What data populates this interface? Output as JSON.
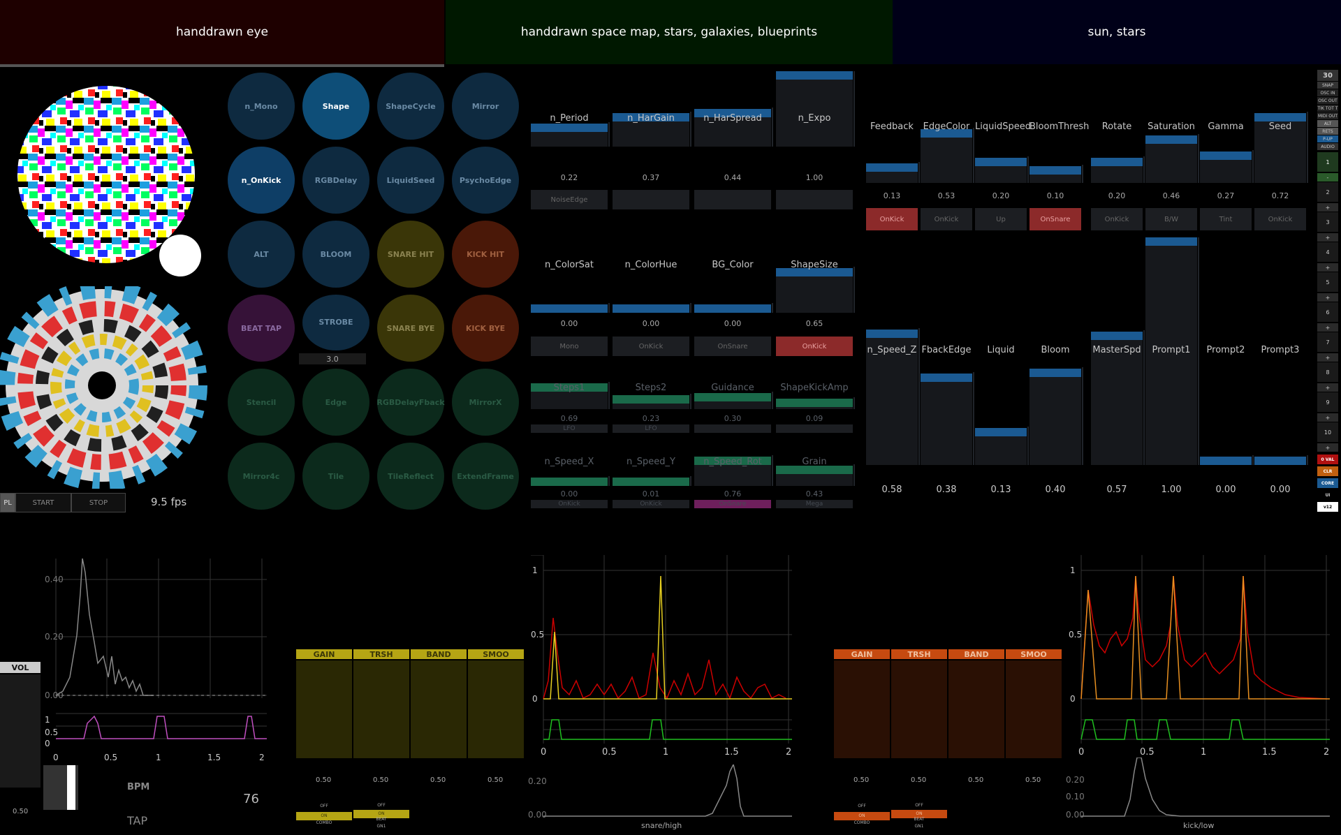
{
  "prompts": [
    "handdrawn eye",
    "handdrawn space map, stars, galaxies, blueprints",
    "sun, stars"
  ],
  "fps": "9.5 fps",
  "transport": {
    "pl": "PL",
    "start": "START",
    "stop": "STOP"
  },
  "toggles": [
    "n_Mono",
    "Shape",
    "ShapeCycle",
    "Mirror",
    "n_OnKick",
    "RGBDelay",
    "LiquidSeed",
    "PsychoEdge",
    "ALT",
    "BLOOM",
    "SNARE HIT",
    "KICK HIT",
    "BEAT TAP",
    "STROBE",
    "SNARE BYE",
    "KICK BYE",
    "Stencil",
    "Edge",
    "RGBDelayFback",
    "MirrorX",
    "Mirror4c",
    "Tile",
    "TileReflect",
    "ExtendFrame"
  ],
  "strobe_value": "3.0",
  "params_left": {
    "row1": {
      "labels": [
        "n_Period",
        "n_HarGain",
        "n_HarSpread",
        "n_Expo"
      ],
      "values": [
        "0.22",
        "0.37",
        "0.44",
        "1.00"
      ],
      "levels": [
        0.22,
        0.37,
        0.44,
        1.0
      ],
      "modes": [
        "NoiseEdge",
        "",
        "",
        ""
      ]
    },
    "row2": {
      "labels": [
        "n_ColorSat",
        "n_ColorHue",
        "BG_Color",
        "ShapeSize"
      ],
      "values": [
        "0.00",
        "0.00",
        "0.00",
        "0.65"
      ],
      "levels": [
        0,
        0,
        0,
        0.65
      ],
      "modes": [
        "Mono",
        "OnKick",
        "OnSnare",
        "OnKick"
      ]
    },
    "row3": {
      "labels": [
        "Steps1",
        "Steps2",
        "Guidance",
        "ShapeKickAmp"
      ],
      "values": [
        "0.69",
        "0.23",
        "0.30",
        "0.09"
      ],
      "levels": [
        0.69,
        0.23,
        0.3,
        0.09
      ],
      "modes": [
        "LFO",
        "LFO",
        "",
        ""
      ]
    },
    "row4": {
      "labels": [
        "n_Speed_X",
        "n_Speed_Y",
        "n_Speed_Rot",
        "Grain"
      ],
      "values": [
        "0.00",
        "0.01",
        "0.76",
        "0.43"
      ],
      "levels": [
        0,
        0.01,
        0.76,
        0.43
      ],
      "modes": [
        "OnKick",
        "OnKick",
        "OnSnare",
        "Mega"
      ]
    }
  },
  "params_right": {
    "row1": {
      "labels": [
        "Feedback",
        "EdgeColor",
        "LiquidSpeed",
        "BloomThresh",
        "Rotate",
        "Saturation",
        "Gamma",
        "Seed"
      ],
      "values": [
        "0.13",
        "0.53",
        "0.20",
        "0.10",
        "0.20",
        "0.46",
        "0.27",
        "0.72"
      ],
      "levels": [
        0.13,
        0.53,
        0.2,
        0.1,
        0.2,
        0.46,
        0.27,
        0.72
      ],
      "modes": [
        "OnKick",
        "OnKick",
        "Up",
        "OnSnare",
        "OnKick",
        "B/W",
        "Tint",
        "OnKick"
      ]
    },
    "row2": {
      "labels": [
        "n_Speed_Z",
        "FbackEdge",
        "Liquid",
        "Bloom",
        "MasterSpd",
        "Prompt1",
        "Prompt2",
        "Prompt3"
      ],
      "values": [
        "0.58",
        "0.38",
        "0.13",
        "0.40",
        "0.57",
        "1.00",
        "0.00",
        "0.00"
      ],
      "levels": [
        0.58,
        0.38,
        0.13,
        0.4,
        0.57,
        1.0,
        0.0,
        0.0
      ]
    }
  },
  "sidebar": {
    "top": "30",
    "items": [
      "SNAP",
      "OSC IN",
      "OSC OUT",
      "TIK TOT T",
      "MIDI OUT",
      "ALT",
      "RETS",
      "P-UP",
      "AUDIO"
    ],
    "slots": [
      "1",
      "-",
      "2",
      "+",
      "3",
      "+",
      "4",
      "+",
      "5",
      "+",
      "6",
      "+",
      "7",
      "+",
      "8",
      "+",
      "9",
      "+",
      "10",
      "+"
    ],
    "bottom": [
      "0 VAL",
      "CLR",
      "CORE",
      "UI",
      "v12"
    ]
  },
  "audio": {
    "vol_label": "VOL",
    "vol_value": "0.50",
    "bpm_label": "BPM",
    "bpm_value": "76",
    "tap_label": "TAP",
    "vol_ticks": [
      "0.40",
      "0.20",
      "0.00"
    ],
    "beat_ticks_y": [
      "1",
      "0.5",
      "0"
    ],
    "x_ticks": [
      "0",
      "0.5",
      "1",
      "1.5",
      "2"
    ],
    "snare_headers": [
      "GAIN",
      "TRSH",
      "BAND",
      "SMOO"
    ],
    "snare_values": [
      "0.50",
      "0.50",
      "0.50",
      "0.50"
    ],
    "snare_mode_a": [
      "OFF",
      "ON",
      "COMBO"
    ],
    "snare_mode_b": [
      "OFF",
      "ON",
      "BEAT",
      "GN1"
    ],
    "kick_headers": [
      "GAIN",
      "TRSH",
      "BAND",
      "SMOO"
    ],
    "kick_values": [
      "0.50",
      "0.50",
      "0.50",
      "0.50"
    ],
    "kick_mode_a": [
      "OFF",
      "ON",
      "COMBO"
    ],
    "kick_mode_b": [
      "OFF",
      "ON",
      "BEAT",
      "GN1"
    ],
    "env_ticks_y": [
      "1",
      "0.5",
      "0"
    ],
    "spec_ticks_snare": [
      "0.20",
      "0.00"
    ],
    "spec_ticks_kick": [
      "0.20",
      "0.10",
      "0.00"
    ],
    "snare_caption": "snare/high",
    "kick_caption": "kick/low"
  },
  "colors": {
    "accent_blue": "#1b5a92",
    "snare_yellow": "#b5a514",
    "kick_orange": "#c64a10"
  }
}
